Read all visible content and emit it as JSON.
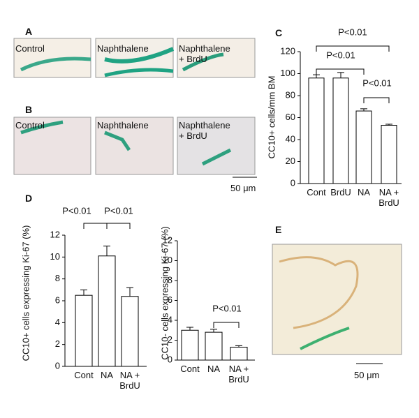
{
  "panel_labels": [
    "A",
    "B",
    "C",
    "D",
    "E"
  ],
  "image_labels": {
    "A": [
      "Control",
      "Naphthalene",
      "Naphthalene + BrdU"
    ],
    "B": [
      "Control",
      "Naphthalene",
      "Naphthalene + BrdU"
    ]
  },
  "scale_bars": [
    "50 μm",
    "50 μm"
  ],
  "chart_data": [
    {
      "type": "bar",
      "y_label": "CC10+ cells/mm BM",
      "categories": [
        "Cont",
        "BrdU",
        "NA",
        "NA + BrdU"
      ],
      "values": [
        96,
        96,
        66,
        53
      ],
      "errors": [
        3,
        5,
        2,
        1
      ],
      "color": "#ffffff",
      "ylim": [
        0,
        120
      ],
      "yticks": [
        0,
        20,
        40,
        60,
        80,
        100,
        120
      ],
      "annotations": [
        "P<0.01",
        "P<0.01",
        "P<0.01"
      ]
    },
    {
      "type": "bar",
      "y_label": "CC10+ cells expressing  Ki-67 (%)",
      "categories": [
        "Cont",
        "NA",
        "NA + BrdU"
      ],
      "values": [
        6.5,
        10.1,
        6.4
      ],
      "errors": [
        0.5,
        0.9,
        0.8
      ],
      "color": "#ffffff",
      "ylim": [
        0,
        12
      ],
      "yticks": [
        0,
        2,
        4,
        6,
        8,
        10,
        12
      ],
      "annotations": [
        "P<0.01",
        "P<0.01"
      ]
    },
    {
      "type": "bar",
      "y_label": "CC10- cells expressing  Ki-67 (%)",
      "categories": [
        "Cont",
        "NA",
        "NA + BrdU"
      ],
      "values": [
        3.0,
        2.8,
        1.3
      ],
      "errors": [
        0.3,
        0.3,
        0.15
      ],
      "color": "#ffffff",
      "ylim": [
        0,
        12
      ],
      "yticks": [
        0,
        2,
        4,
        6,
        8,
        10,
        12
      ],
      "annotations": [
        "P<0.01"
      ]
    }
  ]
}
